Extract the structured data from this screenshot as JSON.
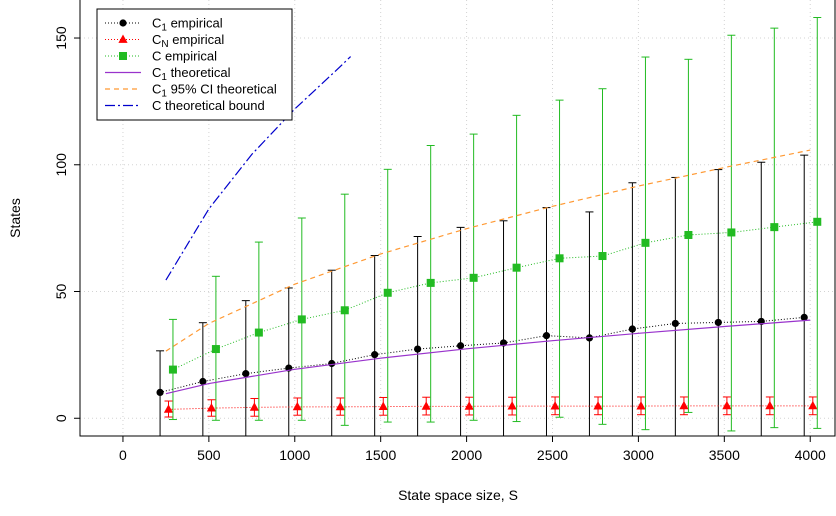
{
  "chart_data": {
    "type": "scatter",
    "title": "",
    "xlabel": "State space size, S",
    "ylabel": "States",
    "xlim": [
      -250,
      4150
    ],
    "ylim": [
      -7,
      165
    ],
    "x_ticks": [
      0,
      500,
      1000,
      1500,
      2000,
      2500,
      3000,
      3500,
      4000
    ],
    "y_ticks": [
      0,
      50,
      100,
      150
    ],
    "grid": true,
    "legend_position": "top-left",
    "series": [
      {
        "name": "C",
        "name_sub": "1",
        "name_rest": " empirical",
        "kind": "points",
        "marker": "circle",
        "color": "#000000",
        "x": [
          216,
          465,
          715,
          965,
          1215,
          1465,
          1715,
          1965,
          2215,
          2465,
          2715,
          2965,
          3215,
          3465,
          3715,
          3965
        ],
        "y": [
          10.2,
          14.5,
          17.6,
          19.8,
          21.6,
          25.1,
          27.3,
          28.6,
          29.7,
          32.6,
          31.7,
          35.2,
          37.4,
          37.8,
          38.2,
          39.8
        ],
        "lower": [
          -7,
          -7,
          -7,
          -7,
          -7,
          -7,
          -7,
          -7,
          -7,
          -7,
          -7,
          -7,
          -7,
          -7,
          -7,
          -7
        ],
        "upper": [
          26.6,
          37.7,
          46.4,
          51.4,
          58.4,
          64.2,
          71.7,
          75.3,
          77.9,
          83.1,
          81.4,
          92.9,
          95.0,
          98.1,
          101.0,
          103.8
        ]
      },
      {
        "name": "C",
        "name_sub": "N",
        "name_rest": " empirical",
        "kind": "points",
        "marker": "triangle",
        "color": "#ff0000",
        "x": [
          265,
          515,
          765,
          1015,
          1265,
          1515,
          1765,
          2015,
          2265,
          2515,
          2765,
          3015,
          3265,
          3515,
          3765,
          4015
        ],
        "y": [
          3.5,
          4.0,
          4.3,
          4.5,
          4.5,
          4.6,
          4.7,
          4.7,
          4.8,
          4.8,
          4.8,
          4.8,
          4.9,
          4.9,
          4.9,
          4.9
        ],
        "lower": [
          0.5,
          0.8,
          0.8,
          1.2,
          1.2,
          1.2,
          1.3,
          1.3,
          1.3,
          1.4,
          1.4,
          1.4,
          1.4,
          1.4,
          1.4,
          1.4
        ],
        "upper": [
          6.8,
          7.3,
          7.8,
          8.0,
          8.0,
          8.2,
          8.3,
          8.3,
          8.3,
          8.4,
          8.4,
          8.4,
          8.4,
          8.4,
          8.4,
          8.4
        ]
      },
      {
        "name": "C",
        "name_sub": "",
        "name_rest": " empirical",
        "kind": "points",
        "marker": "square",
        "color": "#22bb22",
        "x": [
          291,
          541,
          791,
          1041,
          1291,
          1541,
          1791,
          2041,
          2291,
          2541,
          2791,
          3041,
          3291,
          3541,
          3791,
          4041
        ],
        "y": [
          19.2,
          27.3,
          33.8,
          39.0,
          42.6,
          49.5,
          53.4,
          55.4,
          59.4,
          63.1,
          64.0,
          69.2,
          72.3,
          73.3,
          75.4,
          77.5
        ],
        "lower": [
          -0.5,
          -0.8,
          -0.8,
          -0.8,
          -2.8,
          -1.5,
          -1.5,
          -0.8,
          -1.3,
          0.4,
          -2.4,
          -4.5,
          2.3,
          -5.0,
          -3.7,
          -4.0
        ],
        "upper": [
          39.0,
          56.0,
          69.5,
          79.0,
          88.4,
          98.2,
          107.6,
          112.1,
          119.5,
          125.5,
          130.0,
          142.5,
          141.6,
          151.1,
          153.9,
          158.1
        ]
      },
      {
        "name": "C",
        "name_sub": "1",
        "name_rest": " theoretical",
        "kind": "line",
        "dash": "",
        "color": "#9933cc",
        "x": [
          250,
          500,
          1000,
          1500,
          2000,
          2500,
          3000,
          3500,
          4000
        ],
        "y": [
          9.7,
          13.7,
          19.3,
          23.7,
          27.4,
          30.6,
          33.5,
          36.2,
          38.7
        ]
      },
      {
        "name": "C",
        "name_sub": "1",
        "name_rest": " 95% CI theoretical",
        "kind": "line",
        "dash": "5,4",
        "color": "#ff9933",
        "x": [
          250,
          500,
          1000,
          1500,
          2000,
          2500,
          3000,
          3500,
          4000
        ],
        "y": [
          26.5,
          37.4,
          52.9,
          64.8,
          74.8,
          83.6,
          91.6,
          98.9,
          105.8
        ]
      },
      {
        "name": "C",
        "name_sub": "",
        "name_rest": " theoretical bound",
        "kind": "line",
        "dash": "10,3,2,3",
        "color": "#0000cc",
        "x": [
          250,
          500,
          750,
          1000,
          1250,
          1325
        ],
        "y": [
          54.5,
          82.6,
          104.1,
          122.0,
          137.8,
          142.7
        ]
      }
    ]
  }
}
